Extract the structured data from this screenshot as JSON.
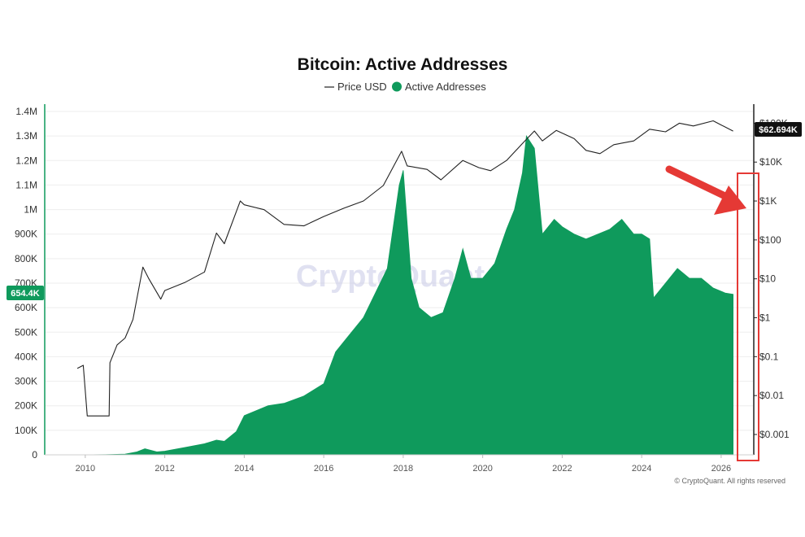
{
  "chart_data": {
    "type": "area",
    "title": "Bitcoin: Active Addresses",
    "legend": [
      {
        "label": "Price USD",
        "color": "#222222",
        "marker": "line"
      },
      {
        "label": "Active Addresses",
        "color": "#0f9a5c",
        "marker": "dot"
      }
    ],
    "legend_position": "top-center",
    "x_ticks": [
      "2010",
      "2012",
      "2014",
      "2016",
      "2018",
      "2020",
      "2022",
      "2024",
      "2026"
    ],
    "xlim": [
      2009.0,
      2026.8
    ],
    "left_axis": {
      "ticks": [
        "0",
        "100K",
        "200K",
        "300K",
        "400K",
        "500K",
        "600K",
        "700K",
        "800K",
        "900K",
        "1M",
        "1.1M",
        "1.2M",
        "1.3M",
        "1.4M"
      ],
      "ylim": [
        0,
        1400000
      ]
    },
    "right_axis": {
      "scale": "log",
      "ticks": [
        "$0.001",
        "$0.01",
        "$0.1",
        "$1",
        "$10",
        "$100",
        "$1K",
        "$10K",
        "$100K"
      ],
      "ylim": [
        0.0003,
        200000
      ]
    },
    "grid": true,
    "series": [
      {
        "name": "Active Addresses",
        "axis": "left",
        "color": "#0f9a5c",
        "points": [
          [
            2009.9,
            0
          ],
          [
            2010.5,
            500
          ],
          [
            2011.0,
            3000
          ],
          [
            2011.3,
            12000
          ],
          [
            2011.5,
            25000
          ],
          [
            2011.8,
            12000
          ],
          [
            2012.0,
            15000
          ],
          [
            2012.5,
            30000
          ],
          [
            2013.0,
            45000
          ],
          [
            2013.3,
            60000
          ],
          [
            2013.5,
            55000
          ],
          [
            2013.8,
            95000
          ],
          [
            2014.0,
            160000
          ],
          [
            2014.3,
            180000
          ],
          [
            2014.6,
            200000
          ],
          [
            2015.0,
            210000
          ],
          [
            2015.5,
            240000
          ],
          [
            2016.0,
            290000
          ],
          [
            2016.3,
            420000
          ],
          [
            2016.6,
            480000
          ],
          [
            2017.0,
            560000
          ],
          [
            2017.3,
            660000
          ],
          [
            2017.6,
            760000
          ],
          [
            2017.9,
            1100000
          ],
          [
            2018.0,
            1160000
          ],
          [
            2018.2,
            720000
          ],
          [
            2018.4,
            600000
          ],
          [
            2018.7,
            560000
          ],
          [
            2019.0,
            580000
          ],
          [
            2019.3,
            720000
          ],
          [
            2019.5,
            840000
          ],
          [
            2019.7,
            720000
          ],
          [
            2020.0,
            720000
          ],
          [
            2020.3,
            780000
          ],
          [
            2020.6,
            920000
          ],
          [
            2020.8,
            1000000
          ],
          [
            2021.0,
            1150000
          ],
          [
            2021.1,
            1300000
          ],
          [
            2021.3,
            1250000
          ],
          [
            2021.5,
            900000
          ],
          [
            2021.8,
            960000
          ],
          [
            2022.0,
            930000
          ],
          [
            2022.3,
            900000
          ],
          [
            2022.6,
            880000
          ],
          [
            2022.9,
            900000
          ],
          [
            2023.2,
            920000
          ],
          [
            2023.5,
            960000
          ],
          [
            2023.8,
            900000
          ],
          [
            2024.0,
            900000
          ],
          [
            2024.2,
            880000
          ],
          [
            2024.3,
            640000
          ],
          [
            2024.6,
            700000
          ],
          [
            2024.9,
            760000
          ],
          [
            2025.2,
            720000
          ],
          [
            2025.5,
            720000
          ],
          [
            2025.8,
            680000
          ],
          [
            2026.1,
            660000
          ],
          [
            2026.3,
            654400
          ]
        ]
      },
      {
        "name": "Price USD",
        "axis": "right",
        "color": "#222222",
        "points": [
          [
            2009.8,
            0.05
          ],
          [
            2009.95,
            0.06
          ],
          [
            2010.05,
            0.003
          ],
          [
            2010.6,
            0.003
          ],
          [
            2010.62,
            0.07
          ],
          [
            2010.8,
            0.2
          ],
          [
            2011.0,
            0.3
          ],
          [
            2011.2,
            0.9
          ],
          [
            2011.45,
            20
          ],
          [
            2011.6,
            10
          ],
          [
            2011.9,
            3
          ],
          [
            2012.0,
            5
          ],
          [
            2012.5,
            8
          ],
          [
            2013.0,
            15
          ],
          [
            2013.3,
            150
          ],
          [
            2013.5,
            80
          ],
          [
            2013.9,
            1000
          ],
          [
            2014.0,
            800
          ],
          [
            2014.5,
            600
          ],
          [
            2015.0,
            250
          ],
          [
            2015.5,
            230
          ],
          [
            2016.0,
            400
          ],
          [
            2016.5,
            650
          ],
          [
            2017.0,
            1000
          ],
          [
            2017.5,
            2500
          ],
          [
            2017.96,
            19000
          ],
          [
            2018.1,
            8000
          ],
          [
            2018.6,
            6500
          ],
          [
            2018.95,
            3500
          ],
          [
            2019.5,
            11000
          ],
          [
            2019.9,
            7200
          ],
          [
            2020.2,
            6000
          ],
          [
            2020.6,
            11000
          ],
          [
            2021.0,
            30000
          ],
          [
            2021.3,
            63000
          ],
          [
            2021.5,
            35000
          ],
          [
            2021.85,
            65000
          ],
          [
            2022.3,
            40000
          ],
          [
            2022.6,
            20000
          ],
          [
            2022.95,
            16500
          ],
          [
            2023.3,
            28000
          ],
          [
            2023.8,
            35000
          ],
          [
            2024.2,
            70000
          ],
          [
            2024.6,
            60000
          ],
          [
            2024.95,
            100000
          ],
          [
            2025.3,
            85000
          ],
          [
            2025.8,
            115000
          ],
          [
            2026.0,
            90000
          ],
          [
            2026.3,
            62694
          ]
        ]
      }
    ],
    "current_values": {
      "active_addresses": "654.4K",
      "price": "$62.694K"
    },
    "watermark": "CryptoQuant",
    "credit": "© CryptoQuant. All rights reserved"
  }
}
